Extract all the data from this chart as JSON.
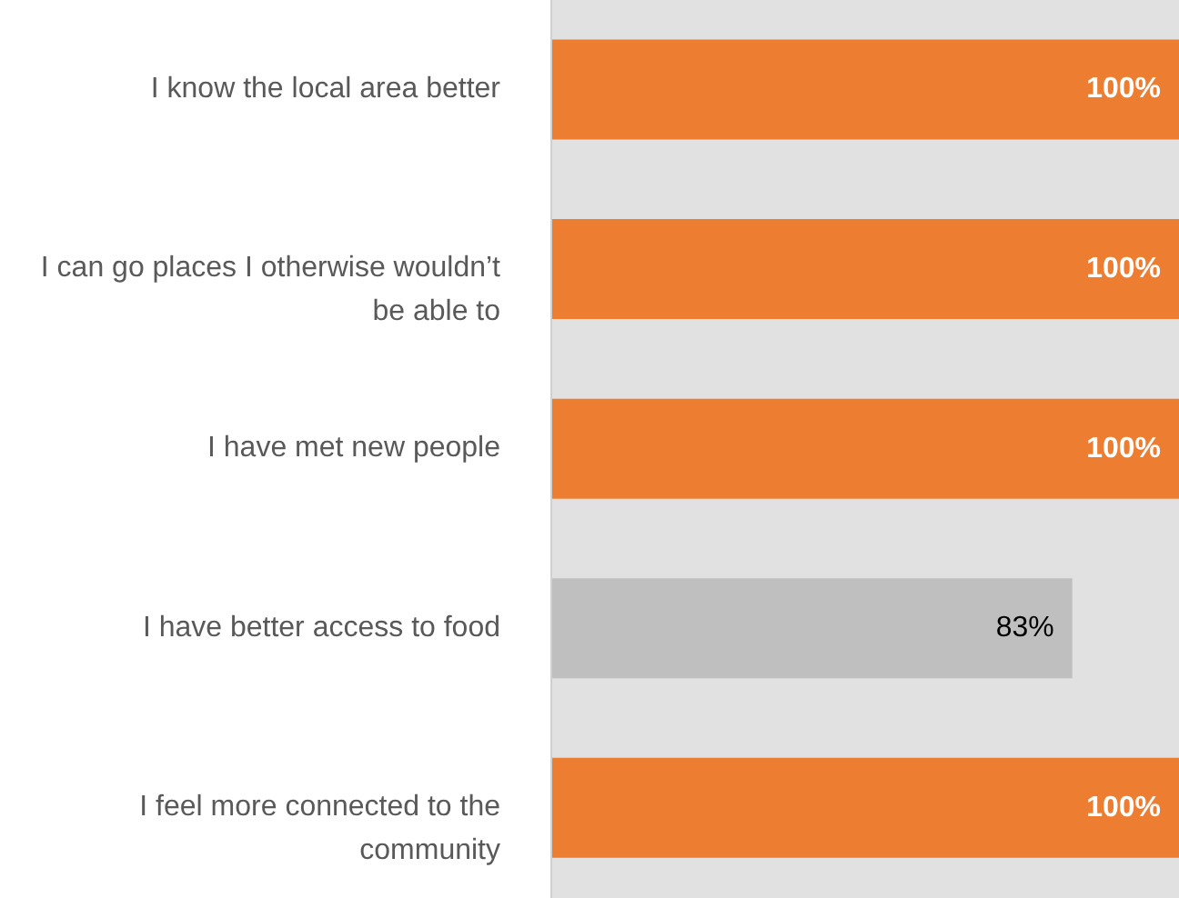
{
  "chart_data": {
    "type": "bar",
    "orientation": "horizontal",
    "categories": [
      "I know the local area better",
      "I can go places I otherwise wouldn’t be able to",
      "I have met new people",
      "I have better access to food",
      "I feel more connected to the community"
    ],
    "values": [
      100,
      100,
      100,
      83,
      100
    ],
    "colors": [
      "#ed7d31",
      "#ed7d31",
      "#ed7d31",
      "#bfbfbf",
      "#ed7d31"
    ],
    "value_labels": [
      "100%",
      "100%",
      "100%",
      "83%",
      "100%"
    ],
    "grid": false,
    "tick_labels": "y"
  }
}
